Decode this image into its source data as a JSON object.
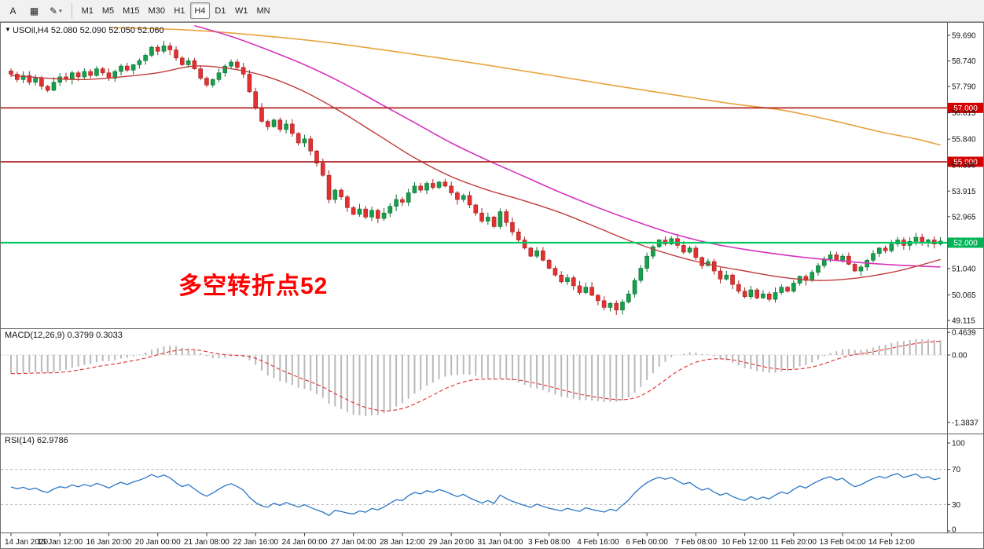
{
  "toolbar": {
    "tools": [
      {
        "name": "text-tool",
        "glyph": "A",
        "caret": false
      },
      {
        "name": "grid-tool",
        "glyph": "▦",
        "caret": false
      },
      {
        "name": "draw-tool",
        "glyph": "✎",
        "caret": true
      }
    ],
    "timeframes": [
      "M1",
      "M5",
      "M15",
      "M30",
      "H1",
      "H4",
      "D1",
      "W1",
      "MN"
    ],
    "active_timeframe": "H4"
  },
  "chart": {
    "title": "USOil,H4 52.080 52.090 52.050 52.060",
    "macd_title": "MACD(12,26,9) 0.3799 0.3033",
    "rsi_title": "RSI(14) 62.9786",
    "annotation": "多空转折点52"
  },
  "colors": {
    "up": "#16A04C",
    "up_edge": "#0B6E33",
    "down": "#E33030",
    "down_edge": "#A32020",
    "ma_fast": "#C23B3B",
    "ma_mid": "#D633BC",
    "ma_slow": "#E8A33D",
    "hline_red": "#B22222",
    "hline_green": "#00C860",
    "tag_red_bg": "#D40000",
    "tag_green_bg": "#00B456",
    "macd_hist": "#B9B9B9",
    "macd_signal": "#E03030",
    "rsi_line": "#2A76C6",
    "annotation": "#FF0000",
    "axis_text": "#111111",
    "border": "#6E6E6E"
  },
  "chart_data": {
    "type": "candlestick+indicators",
    "symbol": "USOil",
    "timeframe": "H4",
    "current_bar": {
      "open": "52.080",
      "high": "52.090",
      "low": "52.050",
      "close": "52.060"
    },
    "price_axis_range": [
      48.85,
      60.15
    ],
    "price_axis_ticks": [
      "59.690",
      "58.740",
      "57.790",
      "56.815",
      "55.840",
      "54.890",
      "53.915",
      "52.965",
      "51.040",
      "50.065",
      "49.115"
    ],
    "closes": [
      58.25,
      58.05,
      58.2,
      57.95,
      58.1,
      57.8,
      57.65,
      57.95,
      58.15,
      58.05,
      58.3,
      58.15,
      58.35,
      58.2,
      58.45,
      58.3,
      58.1,
      58.35,
      58.55,
      58.4,
      58.6,
      58.75,
      58.95,
      59.25,
      59.1,
      59.3,
      59.15,
      58.85,
      58.6,
      58.75,
      58.45,
      58.1,
      57.85,
      58.05,
      58.3,
      58.55,
      58.7,
      58.5,
      58.25,
      57.6,
      57.0,
      56.5,
      56.3,
      56.55,
      56.2,
      56.4,
      56.05,
      55.7,
      55.85,
      55.4,
      54.95,
      54.5,
      53.6,
      53.95,
      53.7,
      53.3,
      53.05,
      53.25,
      52.95,
      53.2,
      52.9,
      53.1,
      53.35,
      53.6,
      53.5,
      53.85,
      54.1,
      53.95,
      54.2,
      54.05,
      54.25,
      54.1,
      53.85,
      53.6,
      53.75,
      53.4,
      53.1,
      52.8,
      52.95,
      52.6,
      53.15,
      52.75,
      52.4,
      52.1,
      51.8,
      51.5,
      51.7,
      51.35,
      51.05,
      50.8,
      50.55,
      50.7,
      50.4,
      50.15,
      50.35,
      50.05,
      49.85,
      49.6,
      49.75,
      49.5,
      49.8,
      50.1,
      50.6,
      51.05,
      51.5,
      51.85,
      52.1,
      51.95,
      52.15,
      51.9,
      51.65,
      51.8,
      51.45,
      51.15,
      51.3,
      50.95,
      50.65,
      50.8,
      50.45,
      50.2,
      50.0,
      50.25,
      49.95,
      50.1,
      49.9,
      50.15,
      50.35,
      50.2,
      50.5,
      50.75,
      50.6,
      50.9,
      51.15,
      51.4,
      51.55,
      51.35,
      51.5,
      51.2,
      50.95,
      51.1,
      51.35,
      51.6,
      51.8,
      51.7,
      51.95,
      52.1,
      51.9,
      52.05,
      52.2,
      52.0,
      52.1,
      51.95,
      52.06
    ],
    "hlines": [
      {
        "price": 57.0,
        "label": "57.000",
        "line_color": "#B22222",
        "tag_bg": "#D40000"
      },
      {
        "price": 55.0,
        "label": "55.000",
        "line_color": "#B22222",
        "tag_bg": "#D40000"
      },
      {
        "price": 52.0,
        "label": "52.000",
        "line_color": "#00C860",
        "tag_bg": "#00B456"
      }
    ],
    "overlays": {
      "ma_slow_orange": [
        [
          16,
          59.98
        ],
        [
          28,
          59.9
        ],
        [
          40,
          59.7
        ],
        [
          52,
          59.42
        ],
        [
          64,
          59.05
        ],
        [
          76,
          58.65
        ],
        [
          88,
          58.22
        ],
        [
          98,
          57.85
        ],
        [
          108,
          57.5
        ],
        [
          118,
          57.15
        ],
        [
          126,
          56.92
        ],
        [
          134,
          56.55
        ],
        [
          142,
          56.12
        ],
        [
          148,
          55.85
        ],
        [
          152,
          55.62
        ]
      ],
      "ma_mid_magenta": [
        [
          30,
          60.05
        ],
        [
          36,
          59.65
        ],
        [
          42,
          59.15
        ],
        [
          48,
          58.6
        ],
        [
          54,
          57.95
        ],
        [
          60,
          57.2
        ],
        [
          66,
          56.45
        ],
        [
          72,
          55.7
        ],
        [
          78,
          55.05
        ],
        [
          84,
          54.45
        ],
        [
          90,
          53.85
        ],
        [
          96,
          53.3
        ],
        [
          102,
          52.8
        ],
        [
          108,
          52.35
        ],
        [
          114,
          52.0
        ],
        [
          120,
          51.75
        ],
        [
          128,
          51.5
        ],
        [
          136,
          51.32
        ],
        [
          144,
          51.18
        ],
        [
          152,
          51.1
        ]
      ],
      "ma_fast_red": [
        [
          0,
          58.2
        ],
        [
          6,
          58.1
        ],
        [
          12,
          58.05
        ],
        [
          18,
          58.15
        ],
        [
          24,
          58.3
        ],
        [
          30,
          58.55
        ],
        [
          36,
          58.45
        ],
        [
          42,
          58.15
        ],
        [
          48,
          57.6
        ],
        [
          54,
          56.85
        ],
        [
          60,
          56.0
        ],
        [
          66,
          55.15
        ],
        [
          72,
          54.45
        ],
        [
          78,
          53.95
        ],
        [
          84,
          53.55
        ],
        [
          90,
          53.1
        ],
        [
          96,
          52.55
        ],
        [
          102,
          52.0
        ],
        [
          108,
          51.55
        ],
        [
          114,
          51.2
        ],
        [
          120,
          50.95
        ],
        [
          126,
          50.72
        ],
        [
          132,
          50.6
        ],
        [
          138,
          50.68
        ],
        [
          144,
          50.9
        ],
        [
          148,
          51.12
        ],
        [
          152,
          51.38
        ]
      ]
    },
    "macd": {
      "label": "MACD(12,26,9)",
      "main_value": "0.3799",
      "signal_value": "0.3033",
      "params": [
        12,
        26,
        9
      ],
      "axis_ticks": [
        "0.4639",
        "0.00",
        "-1.3837"
      ],
      "value_range": [
        0.53,
        -1.61
      ]
    },
    "rsi": {
      "label": "RSI(14)",
      "value": "62.9786",
      "period": 14,
      "levels": [
        70,
        30
      ],
      "axis_ticks": [
        "100",
        "70",
        "30",
        "0"
      ],
      "value_range": [
        0,
        100
      ]
    },
    "time_axis": [
      {
        "label": "14 Jan 2020",
        "bar": 0
      },
      {
        "label": "15 Jan 12:00",
        "bar": 8
      },
      {
        "label": "16 Jan 20:00",
        "bar": 16
      },
      {
        "label": "20 Jan 00:00",
        "bar": 24
      },
      {
        "label": "21 Jan 08:00",
        "bar": 32
      },
      {
        "label": "22 Jan 16:00",
        "bar": 40
      },
      {
        "label": "24 Jan 00:00",
        "bar": 48
      },
      {
        "label": "27 Jan 04:00",
        "bar": 56
      },
      {
        "label": "28 Jan 12:00",
        "bar": 64
      },
      {
        "label": "29 Jan 20:00",
        "bar": 72
      },
      {
        "label": "31 Jan 04:00",
        "bar": 80
      },
      {
        "label": "3 Feb 08:00",
        "bar": 88
      },
      {
        "label": "4 Feb 16:00",
        "bar": 96
      },
      {
        "label": "6 Feb 00:00",
        "bar": 104
      },
      {
        "label": "7 Feb 08:00",
        "bar": 112
      },
      {
        "label": "10 Feb 12:00",
        "bar": 120
      },
      {
        "label": "11 Feb 20:00",
        "bar": 128
      },
      {
        "label": "13 Feb 04:00",
        "bar": 136
      },
      {
        "label": "14 Feb 12:00",
        "bar": 144
      }
    ]
  }
}
